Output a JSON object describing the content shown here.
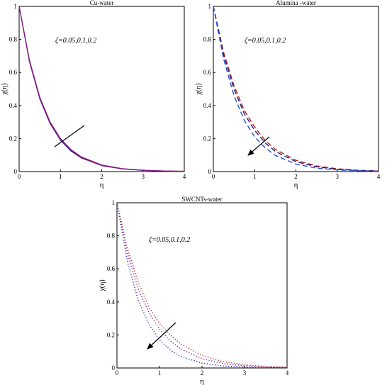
{
  "chart_data": [
    {
      "type": "line",
      "title": "Cu-water",
      "xlabel": "η",
      "ylabel": "χ(η)",
      "annotation": "ζ=0.05,0.1,0.2",
      "annotation_marker": "line",
      "xlim": [
        0,
        4
      ],
      "ylim": [
        0,
        1
      ],
      "xticks": [
        "0",
        "1",
        "2",
        "3",
        "4"
      ],
      "yticks": [
        "0",
        "0.2",
        "0.4",
        "0.6",
        "0.8",
        "1"
      ],
      "line_style": "solid",
      "x": [
        0,
        0.25,
        0.5,
        0.75,
        1,
        1.25,
        1.5,
        2,
        2.5,
        3,
        3.5,
        4
      ],
      "series": [
        {
          "color": "#1f1fb4",
          "values": [
            1,
            0.665,
            0.44,
            0.29,
            0.19,
            0.125,
            0.083,
            0.036,
            0.016,
            0.007,
            0.003,
            0.001
          ]
        },
        {
          "color": "#c01818",
          "values": [
            1,
            0.67,
            0.445,
            0.295,
            0.196,
            0.13,
            0.086,
            0.038,
            0.017,
            0.008,
            0.004,
            0.002
          ]
        },
        {
          "color": "#7a1a8c",
          "values": [
            1,
            0.675,
            0.45,
            0.3,
            0.2,
            0.134,
            0.09,
            0.04,
            0.018,
            0.008,
            0.004,
            0.002
          ]
        }
      ]
    },
    {
      "type": "line",
      "title": "Alumina -water",
      "xlabel": "η",
      "ylabel": "χ(η)",
      "annotation": "ζ=0.05,0.1,0.2",
      "annotation_marker": "arrow",
      "xlim": [
        0,
        4
      ],
      "ylim": [
        0,
        1
      ],
      "xticks": [
        "0",
        "1",
        "2",
        "3",
        "4"
      ],
      "yticks": [
        "0",
        "0.2",
        "0.4",
        "0.6",
        "0.8",
        "1"
      ],
      "line_style": "dashed",
      "x": [
        0,
        0.25,
        0.5,
        0.75,
        1,
        1.25,
        1.5,
        2,
        2.5,
        3,
        3.5,
        4
      ],
      "series": [
        {
          "color": "#c01818",
          "values": [
            1,
            0.72,
            0.52,
            0.37,
            0.27,
            0.19,
            0.135,
            0.068,
            0.034,
            0.017,
            0.008,
            0.004
          ]
        },
        {
          "color": "#1f1f7a",
          "values": [
            1,
            0.705,
            0.5,
            0.35,
            0.25,
            0.175,
            0.122,
            0.06,
            0.029,
            0.014,
            0.007,
            0.003
          ]
        },
        {
          "color": "#2a4fd4",
          "values": [
            1,
            0.68,
            0.46,
            0.31,
            0.21,
            0.145,
            0.098,
            0.045,
            0.021,
            0.01,
            0.005,
            0.002
          ]
        }
      ]
    },
    {
      "type": "line",
      "title": "SWCNTs-water",
      "xlabel": "η",
      "ylabel": "χ(η)",
      "annotation": "ζ=0.05,0.1,0.2",
      "annotation_marker": "arrow",
      "xlim": [
        0,
        4
      ],
      "ylim": [
        0,
        1
      ],
      "xticks": [
        "0",
        "1",
        "2",
        "3",
        "4"
      ],
      "yticks": [
        "0",
        "0.2",
        "0.4",
        "0.6",
        "0.8",
        "1"
      ],
      "line_style": "dotted",
      "x": [
        0,
        0.25,
        0.5,
        0.75,
        1,
        1.25,
        1.5,
        2,
        2.5,
        3,
        3.5,
        4
      ],
      "series": [
        {
          "color": "#c01818",
          "values": [
            1,
            0.72,
            0.52,
            0.37,
            0.27,
            0.2,
            0.145,
            0.075,
            0.038,
            0.019,
            0.01,
            0.005
          ]
        },
        {
          "color": "#7a1a8c",
          "values": [
            1,
            0.69,
            0.48,
            0.335,
            0.235,
            0.165,
            0.115,
            0.056,
            0.027,
            0.013,
            0.006,
            0.003
          ]
        },
        {
          "color": "#1f1fb4",
          "values": [
            1,
            0.64,
            0.41,
            0.265,
            0.17,
            0.11,
            0.07,
            0.029,
            0.012,
            0.005,
            0.002,
            0.001
          ]
        }
      ]
    }
  ]
}
